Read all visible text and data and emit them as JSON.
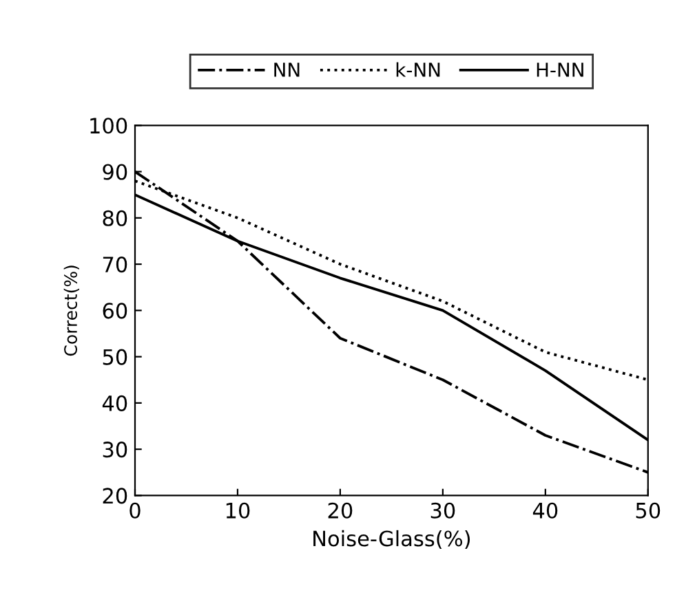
{
  "chart_data": {
    "type": "line",
    "xlabel": "Noise-Glass(%)",
    "ylabel": "Correct(%)",
    "x": [
      0,
      10,
      20,
      30,
      40,
      50
    ],
    "xlim": [
      0,
      50
    ],
    "xticks": [
      0,
      10,
      20,
      30,
      40,
      50
    ],
    "ylim": [
      20,
      100
    ],
    "yticks": [
      20,
      30,
      40,
      50,
      60,
      70,
      80,
      90,
      100
    ],
    "grid": false,
    "legend": "top",
    "marker": "none",
    "series": [
      {
        "name": "NN",
        "color": "#000000",
        "line_style": "dashdot",
        "values": [
          90,
          75,
          54,
          45,
          33,
          25
        ]
      },
      {
        "name": "k-NN",
        "color": "#000000",
        "line_style": "dotted",
        "values": [
          88,
          80,
          70,
          62,
          51,
          45
        ]
      },
      {
        "name": "H-NN",
        "color": "#000000",
        "line_style": "solid",
        "values": [
          85,
          75,
          67,
          60,
          47,
          32
        ]
      }
    ]
  }
}
